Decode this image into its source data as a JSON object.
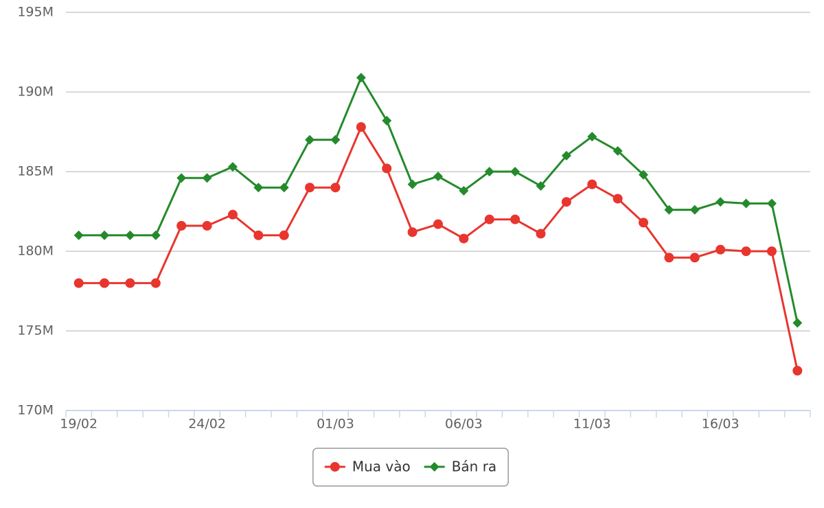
{
  "chart_data": {
    "type": "line",
    "categories": [
      "19/02",
      null,
      null,
      null,
      null,
      "24/02",
      null,
      null,
      null,
      null,
      "01/03",
      null,
      null,
      null,
      null,
      "06/03",
      null,
      null,
      null,
      null,
      "11/03",
      null,
      null,
      null,
      null,
      "16/03",
      null,
      null,
      null
    ],
    "series": [
      {
        "name": "Mua vào",
        "color": "#e8352e",
        "marker": "circle",
        "values": [
          178,
          178,
          178,
          178,
          181.6,
          181.6,
          182.3,
          181,
          181,
          184,
          184,
          187.8,
          185.2,
          181.2,
          181.7,
          180.8,
          182,
          182,
          181.1,
          183.1,
          184.2,
          183.3,
          181.8,
          179.6,
          179.6,
          180.1,
          180,
          180,
          172.5
        ]
      },
      {
        "name": "Bán ra",
        "color": "#248a2c",
        "marker": "diamond",
        "values": [
          181,
          181,
          181,
          181,
          184.6,
          184.6,
          185.3,
          184,
          184,
          187,
          187,
          190.9,
          188.2,
          184.2,
          184.7,
          183.8,
          185,
          185,
          184.1,
          186,
          187.2,
          186.3,
          184.8,
          182.6,
          182.6,
          183.1,
          183,
          183,
          175.5
        ]
      }
    ],
    "ylim": [
      170,
      195
    ],
    "yticks": [
      {
        "value": 170,
        "label": "170M"
      },
      {
        "value": 175,
        "label": "175M"
      },
      {
        "value": 180,
        "label": "180M"
      },
      {
        "value": 185,
        "label": "185M"
      },
      {
        "value": 190,
        "label": "190M"
      },
      {
        "value": 195,
        "label": "195M"
      }
    ],
    "grid": true,
    "legend": "bottom"
  }
}
